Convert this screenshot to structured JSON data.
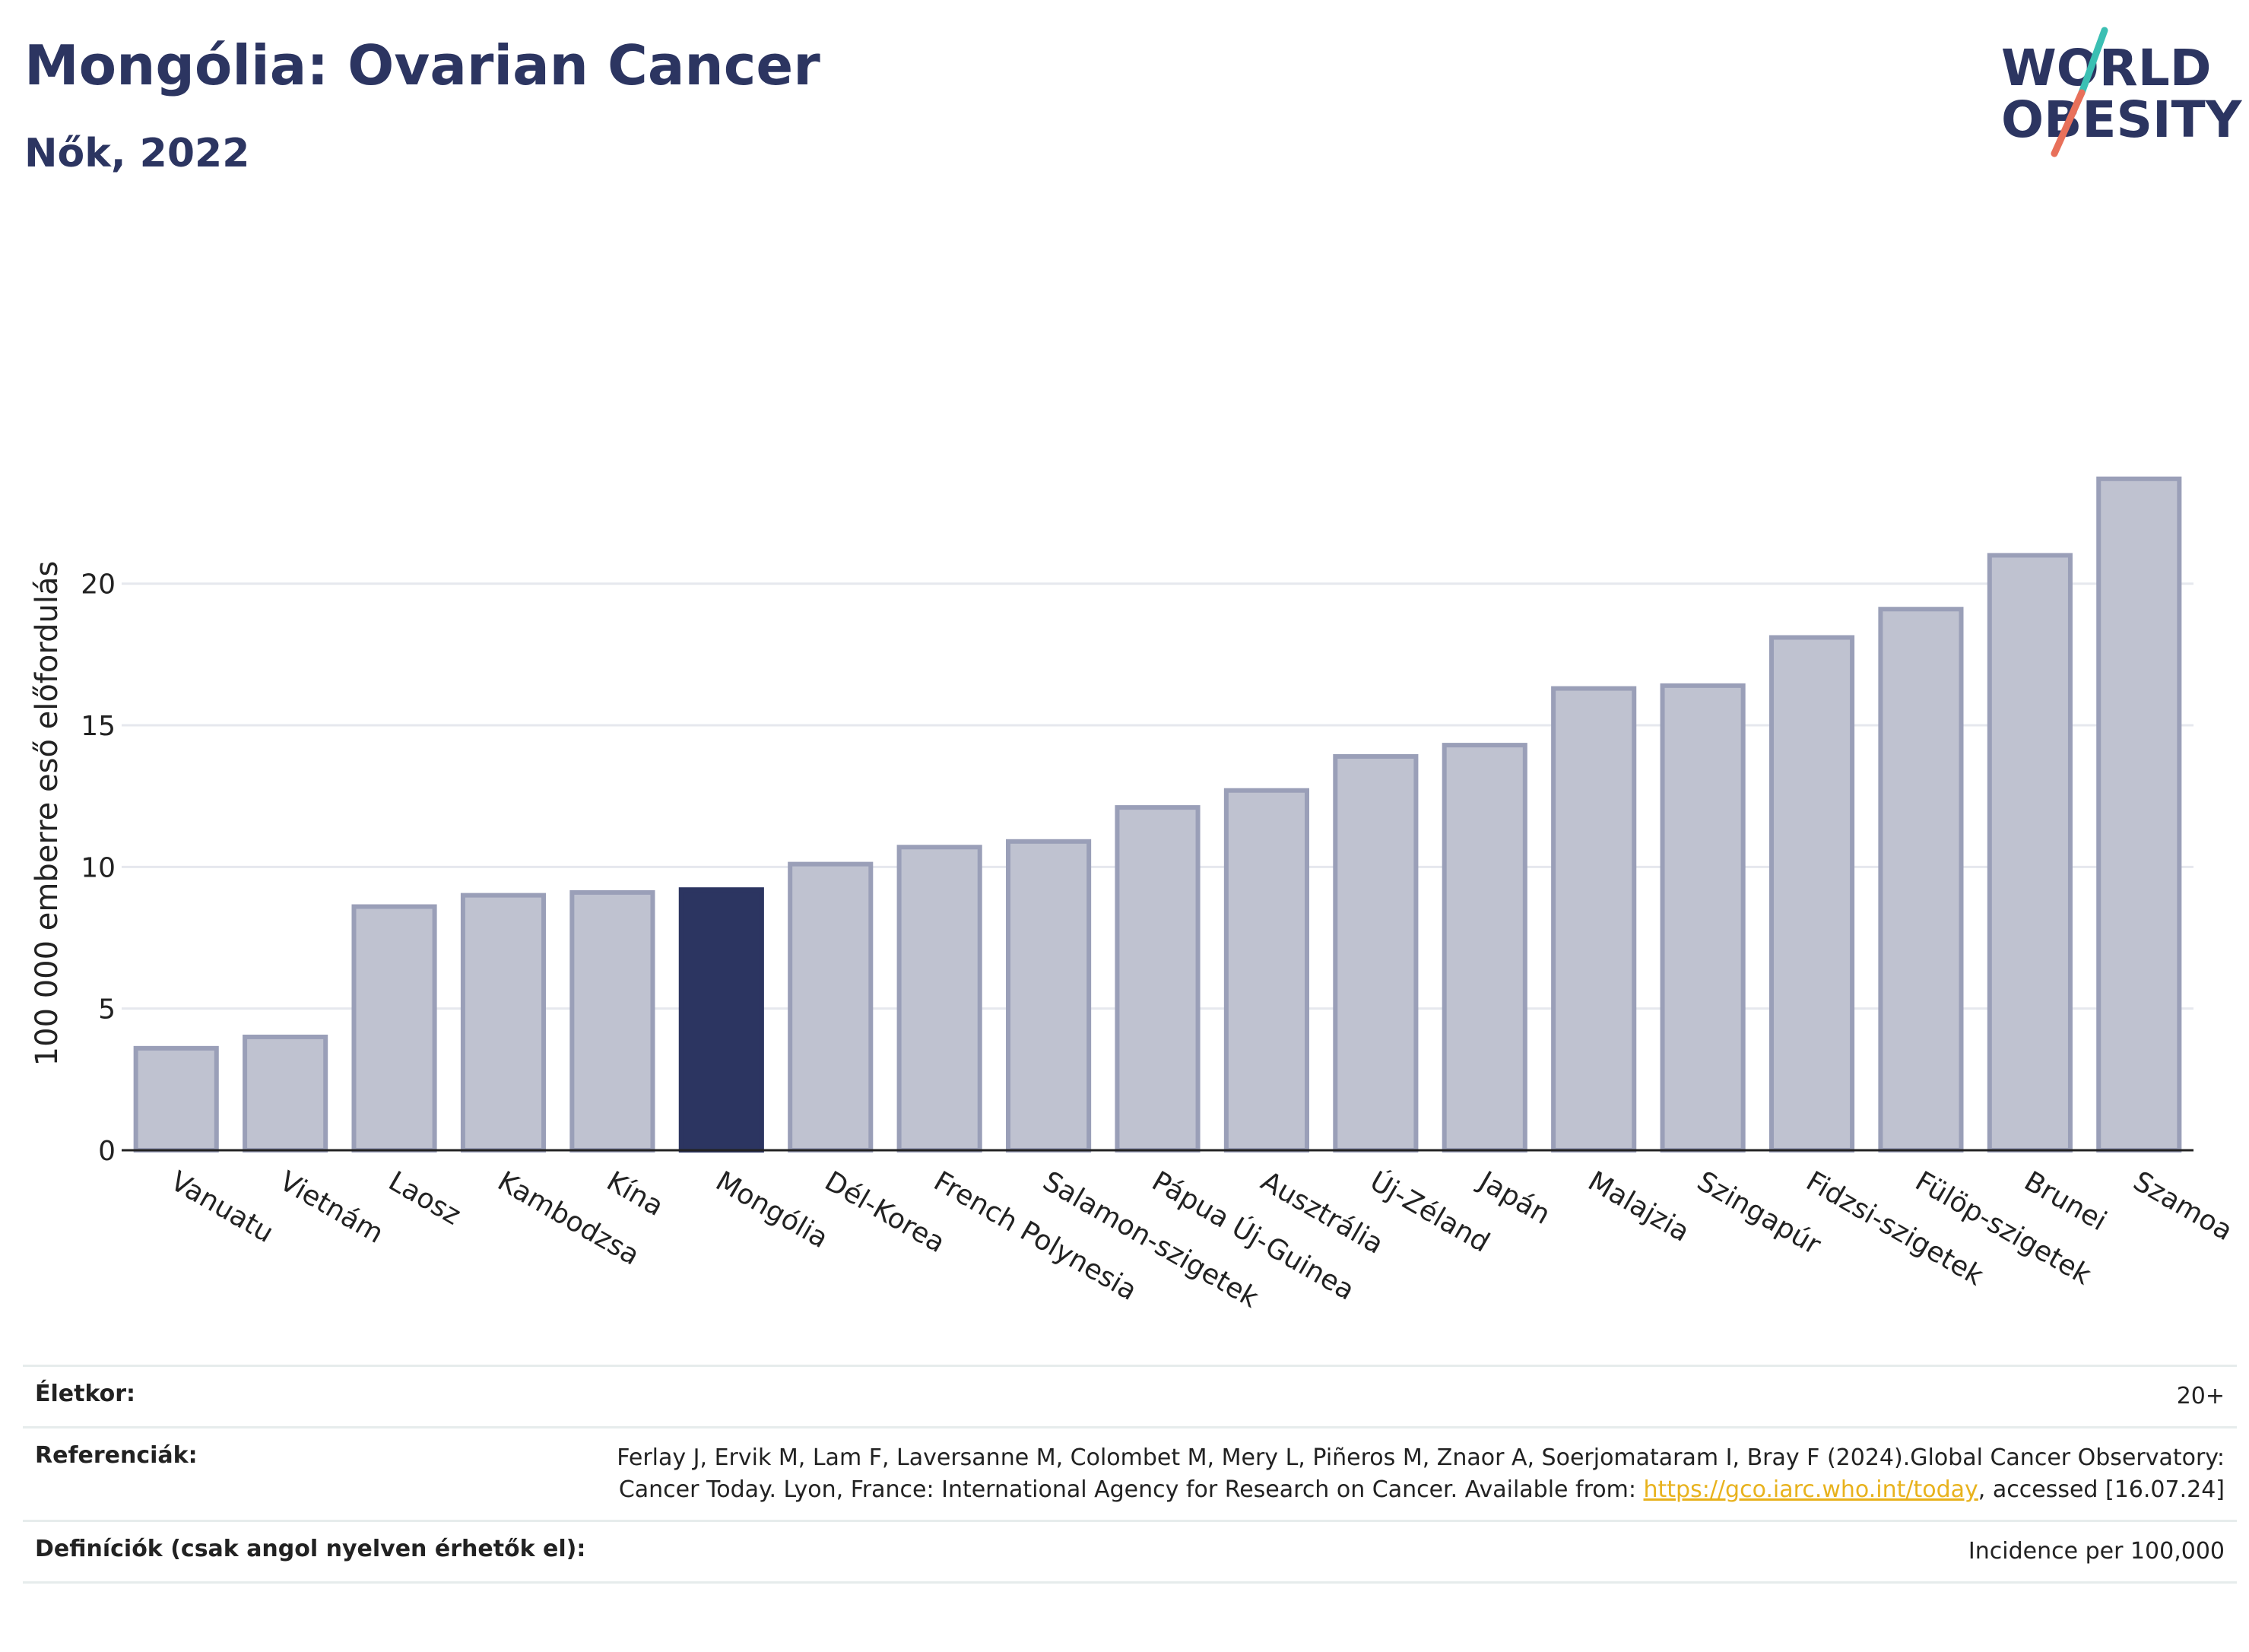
{
  "header": {
    "title": "Mongólia: Ovarian Cancer",
    "subtitle": "Nők, 2022"
  },
  "logo": {
    "line1": "WORLD",
    "line2": "OBESITY",
    "text_color": "#2c3561",
    "accent_teal": "#3bbfb3",
    "accent_coral": "#e8705a"
  },
  "colors": {
    "bar": "#bfc2d0",
    "bar_edge": "#9a9fb8",
    "highlight": "#2c3561",
    "grid": "#e6e8ee",
    "axis": "#222222"
  },
  "chart_data": {
    "type": "bar",
    "title": "",
    "xlabel": "",
    "ylabel": "100 000 emberre eső előfordulás",
    "ylim": [
      0,
      24.5
    ],
    "yticks": [
      0,
      5,
      10,
      15,
      20
    ],
    "grid": true,
    "highlight": "Mongólia",
    "categories": [
      "Vanuatu",
      "Vietnám",
      "Laosz",
      "Kambodzsa",
      "Kína",
      "Mongólia",
      "Dél-Korea",
      "French Polynesia",
      "Salamon-szigetek",
      "Pápua Új-Guinea",
      "Ausztrália",
      "Új-Zéland",
      "Japán",
      "Malajzia",
      "Szingapúr",
      "Fidzsi-szigetek",
      "Fülöp-szigetek",
      "Brunei",
      "Szamoa"
    ],
    "values": [
      3.6,
      4.0,
      8.6,
      9.0,
      9.1,
      9.2,
      10.1,
      10.7,
      10.9,
      12.1,
      12.7,
      13.9,
      14.3,
      16.3,
      16.4,
      18.1,
      19.1,
      21.0,
      23.7
    ]
  },
  "info": {
    "age_label": "Életkor:",
    "age_value": "20+",
    "references_label": "Referenciák:",
    "references_text": "Ferlay J, Ervik M, Lam F, Laversanne M, Colombet M, Mery L, Piñeros M, Znaor A, Soerjomataram I, Bray F (2024).Global Cancer Observatory: Cancer Today. Lyon, France: International Agency for Research on Cancer. Available from: ",
    "references_link": "https://gco.iarc.who.int/today",
    "references_suffix": ", accessed [16.07.24]",
    "definitions_label": "Definíciók (csak angol nyelven érhetők el):",
    "definitions_value": "Incidence per 100,000"
  }
}
